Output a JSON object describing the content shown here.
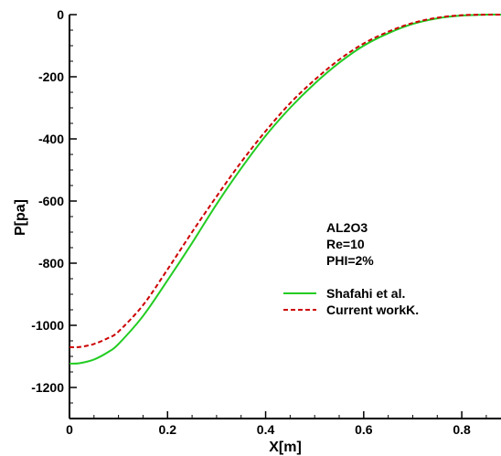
{
  "chart_data": {
    "type": "line",
    "title": "",
    "xlabel": "X[m]",
    "ylabel": "P[pa]",
    "xlim": [
      0,
      0.88
    ],
    "ylim": [
      -1300,
      0
    ],
    "x_ticks": [
      0,
      0.2,
      0.4,
      0.6,
      0.8
    ],
    "x_tick_labels": [
      "0",
      "0.2",
      "0.4",
      "0.6",
      "0.8"
    ],
    "y_ticks": [
      0,
      -200,
      -400,
      -600,
      -800,
      -1000,
      -1200
    ],
    "y_tick_labels": [
      "0",
      "-200",
      "-400",
      "-600",
      "-800",
      "-1000",
      "-1200"
    ],
    "grid": false,
    "annotations": [
      "AL2O3",
      "Re=10",
      "PHI=2%"
    ],
    "legend_position": "right-middle",
    "series": [
      {
        "name": "Shafahi et al.",
        "color": "#22cc22",
        "style": "solid",
        "x": [
          0,
          0.02,
          0.05,
          0.08,
          0.1,
          0.15,
          0.2,
          0.25,
          0.3,
          0.35,
          0.4,
          0.45,
          0.5,
          0.55,
          0.6,
          0.65,
          0.7,
          0.75,
          0.8,
          0.85,
          0.88
        ],
        "y": [
          -1123,
          -1122,
          -1110,
          -1085,
          -1060,
          -970,
          -855,
          -735,
          -610,
          -495,
          -390,
          -300,
          -222,
          -155,
          -100,
          -60,
          -30,
          -12,
          -3,
          0,
          0
        ]
      },
      {
        "name": "Current workK.",
        "color": "#cc0000",
        "style": "dashed",
        "x": [
          0,
          0.02,
          0.05,
          0.08,
          0.1,
          0.15,
          0.2,
          0.25,
          0.3,
          0.35,
          0.4,
          0.45,
          0.5,
          0.55,
          0.6,
          0.65,
          0.7,
          0.75,
          0.8,
          0.85,
          0.88
        ],
        "y": [
          -1070,
          -1070,
          -1060,
          -1040,
          -1020,
          -935,
          -820,
          -700,
          -585,
          -475,
          -375,
          -285,
          -210,
          -145,
          -93,
          -55,
          -27,
          -10,
          -2,
          0,
          0
        ]
      }
    ]
  }
}
